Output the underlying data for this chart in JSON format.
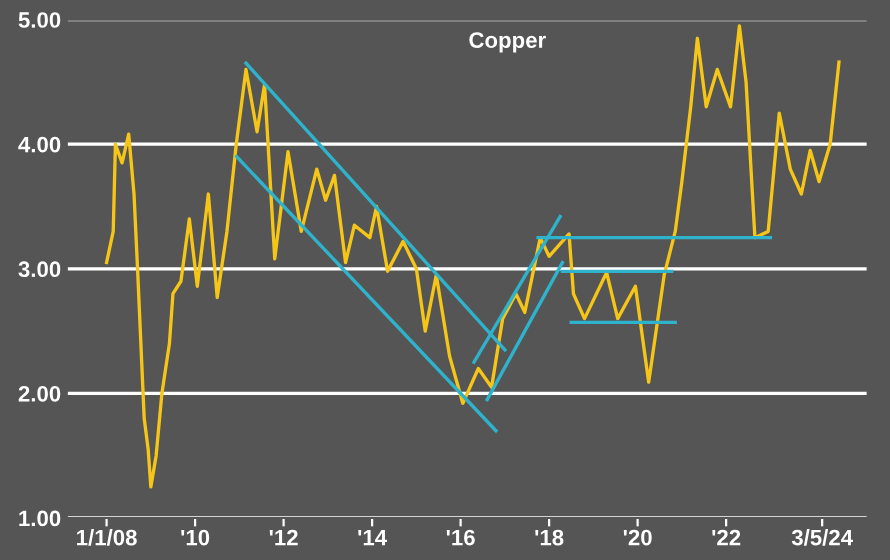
{
  "chart_data": {
    "type": "line",
    "title": "Copper",
    "xlim": [
      2007.1,
      2025.2
    ],
    "xticks": [
      {
        "value": 2008,
        "label": "1/1/08"
      },
      {
        "value": 2010,
        "label": "'10"
      },
      {
        "value": 2012,
        "label": "'12"
      },
      {
        "value": 2014,
        "label": "'14"
      },
      {
        "value": 2016,
        "label": "'16"
      },
      {
        "value": 2018,
        "label": "'18"
      },
      {
        "value": 2020,
        "label": "'20"
      },
      {
        "value": 2022,
        "label": "'22"
      },
      {
        "value": 2024.17,
        "label": "3/5/24"
      }
    ],
    "ylim": [
      1,
      5
    ],
    "yticks": [
      {
        "value": 1,
        "label": "1.00"
      },
      {
        "value": 2,
        "label": "2.00"
      },
      {
        "value": 3,
        "label": "3.00"
      },
      {
        "value": 4,
        "label": "4.00"
      },
      {
        "value": 5,
        "label": "5.00"
      }
    ],
    "grid": "y",
    "series": [
      {
        "color": "#f5c518",
        "x": [
          2008.0,
          2008.15,
          2008.2,
          2008.35,
          2008.5,
          2008.62,
          2008.7,
          2008.85,
          2008.94,
          2009.0,
          2009.12,
          2009.25,
          2009.42,
          2009.5,
          2009.68,
          2009.87,
          2010.05,
          2010.3,
          2010.5,
          2010.72,
          2010.93,
          2011.15,
          2011.4,
          2011.57,
          2011.8,
          2012.1,
          2012.4,
          2012.75,
          2012.95,
          2013.15,
          2013.4,
          2013.6,
          2013.95,
          2014.1,
          2014.35,
          2014.7,
          2015.0,
          2015.2,
          2015.45,
          2015.75,
          2016.05,
          2016.4,
          2016.7,
          2016.95,
          2017.25,
          2017.45,
          2017.8,
          2018.0,
          2018.45,
          2018.55,
          2018.8,
          2019.3,
          2019.55,
          2019.95,
          2020.25,
          2020.6,
          2020.85,
          2021.0,
          2021.2,
          2021.35,
          2021.55,
          2021.8,
          2022.1,
          2022.3,
          2022.45,
          2022.65,
          2022.95,
          2023.2,
          2023.45,
          2023.7,
          2023.9,
          2024.1,
          2024.35,
          2024.55
        ],
        "values": [
          3.05,
          3.3,
          4.0,
          3.85,
          4.08,
          3.6,
          3.0,
          1.8,
          1.55,
          1.25,
          1.5,
          2.0,
          2.4,
          2.8,
          2.9,
          3.4,
          2.86,
          3.6,
          2.77,
          3.3,
          4.0,
          4.6,
          4.1,
          4.48,
          3.08,
          3.94,
          3.3,
          3.8,
          3.55,
          3.75,
          3.05,
          3.35,
          3.25,
          3.5,
          2.98,
          3.22,
          3.0,
          2.5,
          2.95,
          2.3,
          1.92,
          2.2,
          2.05,
          2.6,
          2.8,
          2.65,
          3.25,
          3.1,
          3.28,
          2.8,
          2.6,
          2.97,
          2.6,
          2.86,
          2.09,
          2.95,
          3.3,
          3.7,
          4.3,
          4.85,
          4.3,
          4.6,
          4.3,
          4.95,
          4.5,
          3.25,
          3.3,
          4.25,
          3.8,
          3.6,
          3.95,
          3.7,
          4.0,
          4.66
        ]
      },
      {
        "color": "#2fb3cc",
        "x": [
          2011.15,
          2017.0
        ],
        "values": [
          4.65,
          2.35
        ]
      },
      {
        "color": "#2fb3cc",
        "x": [
          2010.94,
          2016.8
        ],
        "values": [
          3.9,
          1.7
        ]
      },
      {
        "color": "#2fb3cc",
        "x": [
          2016.6,
          2018.3
        ],
        "values": [
          1.95,
          3.05
        ]
      },
      {
        "color": "#2fb3cc",
        "x": [
          2016.3,
          2018.25
        ],
        "values": [
          2.25,
          3.42
        ]
      },
      {
        "color": "#2fb3cc",
        "x": [
          2017.75,
          2023.0
        ],
        "values": [
          3.25,
          3.25
        ]
      },
      {
        "color": "#2fb3cc",
        "x": [
          2018.3,
          2020.77
        ],
        "values": [
          2.98,
          2.98
        ]
      },
      {
        "color": "#2fb3cc",
        "x": [
          2018.5,
          2020.85
        ],
        "values": [
          2.57,
          2.57
        ]
      }
    ]
  }
}
